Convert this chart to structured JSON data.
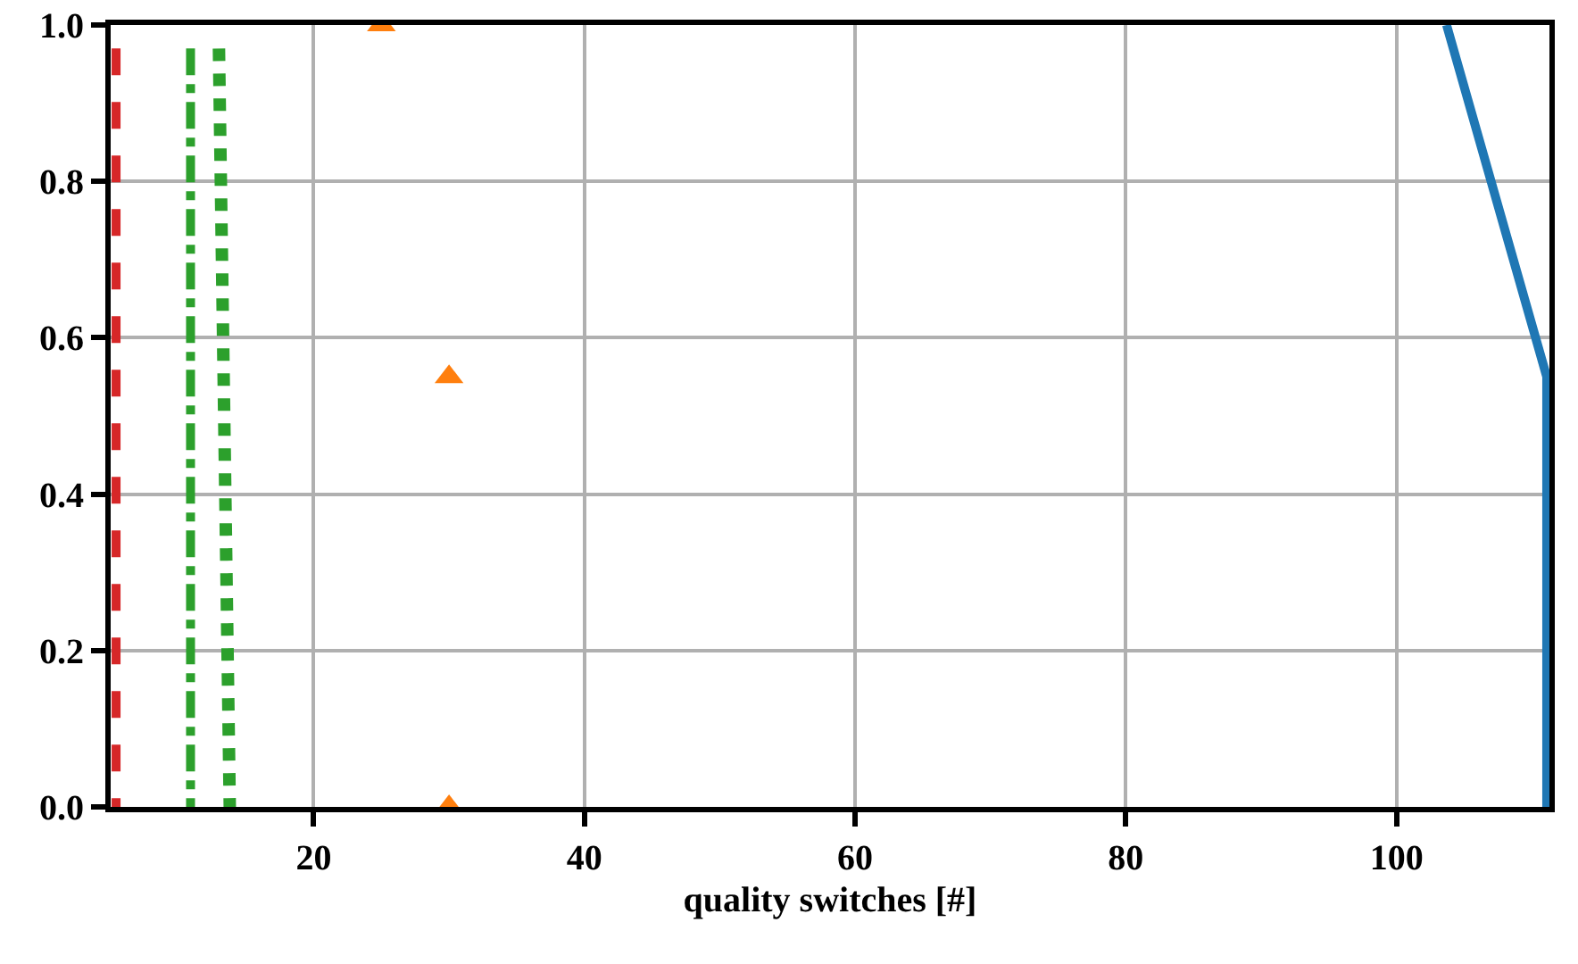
{
  "chart_data": {
    "type": "line",
    "xlabel": "quality switches [#]",
    "xlim": [
      5,
      111.3
    ],
    "ylim": [
      0,
      1
    ],
    "xticks": [
      20,
      40,
      60,
      80,
      100
    ],
    "yticks": [
      {
        "value": 0,
        "label": "0.0"
      },
      {
        "value": 0.2,
        "label": "0.2"
      },
      {
        "value": 0.4,
        "label": "0.4"
      },
      {
        "value": 0.6,
        "label": "0.6"
      },
      {
        "value": 0.8,
        "label": "0.8"
      },
      {
        "value": 1,
        "label": "1.0"
      }
    ],
    "grid": true,
    "series": [
      {
        "color": "#1f77b4",
        "line_style": "solid",
        "x": [
          103.7,
          111.1,
          111.1
        ],
        "values": [
          1.0,
          0.55,
          0
        ]
      },
      {
        "type": "scatter",
        "color": "#ff7f0e",
        "marker": "triangle",
        "x": [
          25,
          30,
          30
        ],
        "values": [
          1.0,
          0.55,
          0
        ]
      },
      {
        "color": "#2ca02c",
        "line_style": "dashdot",
        "x": [
          10.9,
          10.9
        ],
        "values": [
          0.97,
          0
        ]
      },
      {
        "color": "#2ca02c",
        "line_style": "dotted",
        "x": [
          13.0,
          13.8
        ],
        "values": [
          0.97,
          0
        ]
      },
      {
        "color": "#d62728",
        "line_style": "dashed",
        "x": [
          5.4,
          5.4
        ],
        "values": [
          0.97,
          0
        ]
      }
    ]
  }
}
